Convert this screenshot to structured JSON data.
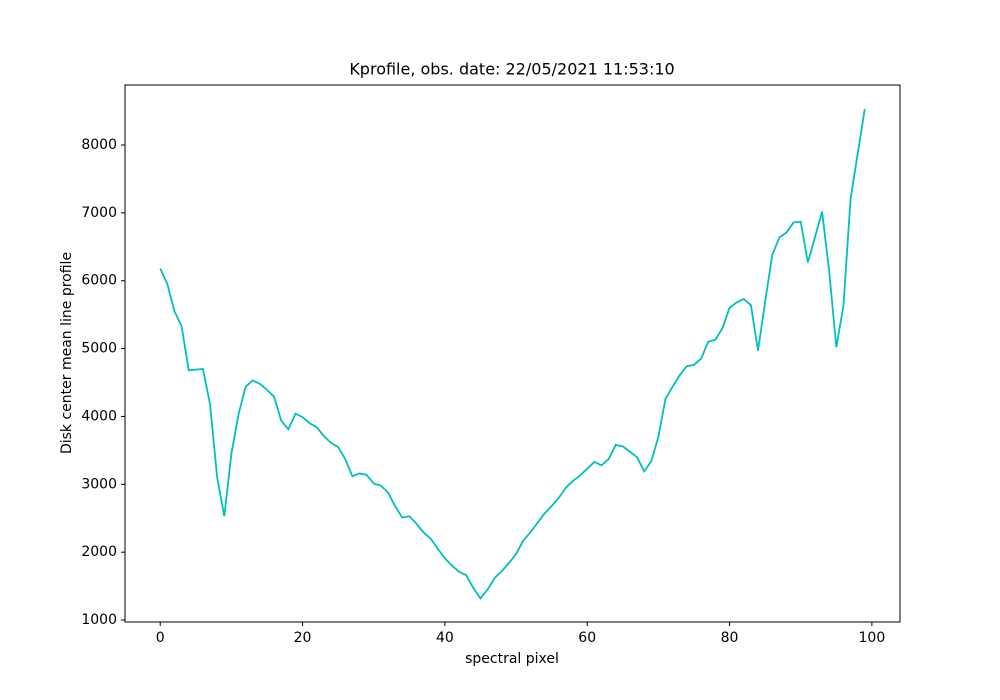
{
  "chart_data": {
    "type": "line",
    "title": "Kprofile, obs. date: 22/05/2021 11:53:10",
    "x_label": "spectral pixel",
    "y_label": "Disk center mean line profile",
    "color": "#00bfbf",
    "x": [
      0,
      1,
      2,
      3,
      4,
      5,
      6,
      7,
      8,
      9,
      10,
      11,
      12,
      13,
      14,
      15,
      16,
      17,
      18,
      19,
      20,
      21,
      22,
      23,
      24,
      25,
      26,
      27,
      28,
      29,
      30,
      31,
      32,
      33,
      34,
      35,
      36,
      37,
      38,
      39,
      40,
      41,
      42,
      43,
      44,
      45,
      46,
      47,
      48,
      49,
      50,
      51,
      52,
      53,
      54,
      55,
      56,
      57,
      58,
      59,
      60,
      61,
      62,
      63,
      64,
      65,
      66,
      67,
      68,
      69,
      70,
      71,
      72,
      73,
      74,
      75,
      76,
      77,
      78,
      79,
      80,
      81,
      82,
      83,
      84,
      85,
      86,
      87,
      88,
      89,
      90,
      91,
      92,
      93,
      94,
      95,
      96,
      97,
      98,
      99
    ],
    "values": [
      6180,
      5950,
      5550,
      5330,
      4680,
      4690,
      4700,
      4180,
      3100,
      2530,
      3450,
      4030,
      4440,
      4530,
      4480,
      4390,
      4290,
      3940,
      3810,
      4040,
      3990,
      3900,
      3840,
      3710,
      3610,
      3550,
      3370,
      3120,
      3160,
      3140,
      3010,
      2980,
      2880,
      2680,
      2510,
      2530,
      2420,
      2290,
      2200,
      2050,
      1910,
      1800,
      1710,
      1660,
      1470,
      1320,
      1450,
      1620,
      1720,
      1840,
      1970,
      2170,
      2290,
      2430,
      2570,
      2680,
      2800,
      2950,
      3050,
      3130,
      3230,
      3330,
      3280,
      3370,
      3580,
      3560,
      3480,
      3400,
      3190,
      3340,
      3700,
      4260,
      4440,
      4610,
      4740,
      4760,
      4850,
      5100,
      5130,
      5300,
      5600,
      5680,
      5730,
      5640,
      4970,
      5690,
      6380,
      6640,
      6710,
      6860,
      6870,
      6270,
      6640,
      7020,
      6140,
      5020,
      5630,
      7200,
      7870,
      8530
    ],
    "xlim": [
      -4.95,
      103.95
    ],
    "ylim": [
      971,
      8884
    ],
    "xticks": [
      0,
      20,
      40,
      60,
      80,
      100
    ],
    "yticks": [
      1000,
      2000,
      3000,
      4000,
      5000,
      6000,
      7000,
      8000
    ]
  }
}
